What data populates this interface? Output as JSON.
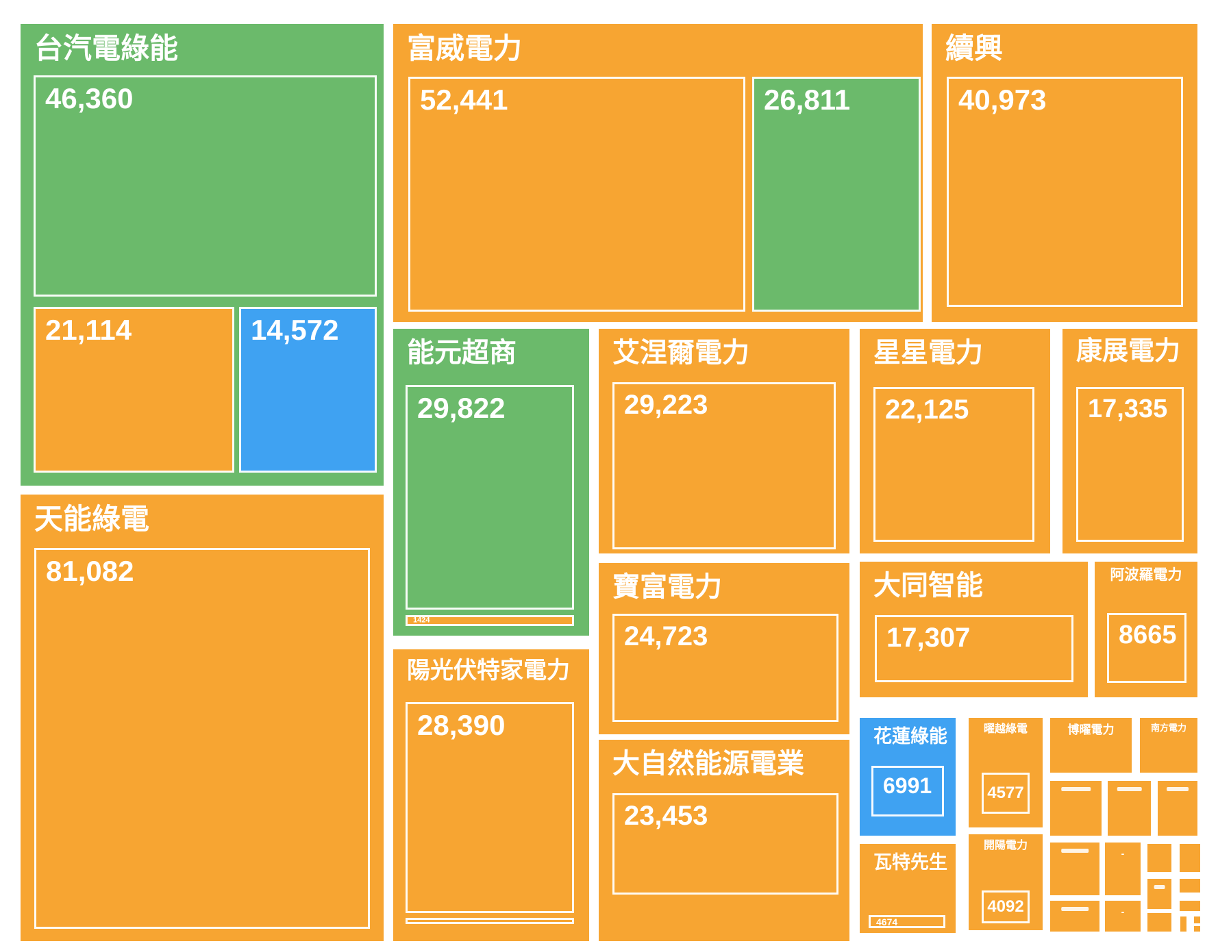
{
  "chart_data": {
    "type": "treemap",
    "legend": null,
    "palette": {
      "orange": "#F7A532",
      "green": "#6BBA6B",
      "blue": "#3FA2F2",
      "background": "#FFFFFF",
      "text": "#FFFFFF"
    },
    "groups": {
      "taiqidian": {
        "label": "台汽電綠能",
        "color": "green",
        "cells": {
          "v46360": {
            "value": 46360,
            "display": "46,360",
            "color": "green"
          },
          "v21114": {
            "value": 21114,
            "display": "21,114",
            "color": "orange"
          },
          "v14572": {
            "value": 14572,
            "display": "14,572",
            "color": "blue"
          }
        }
      },
      "fuwei": {
        "label": "富威電力",
        "color": "orange",
        "cells": {
          "v52441": {
            "value": 52441,
            "display": "52,441",
            "color": "orange"
          },
          "v26811": {
            "value": 26811,
            "display": "26,811",
            "color": "green"
          }
        }
      },
      "xuxing": {
        "label": "續興",
        "color": "orange",
        "cells": {
          "v40973": {
            "value": 40973,
            "display": "40,973",
            "color": "orange"
          }
        }
      },
      "nengyuan": {
        "label": "能元超商",
        "color": "green",
        "cells": {
          "v29822": {
            "value": 29822,
            "display": "29,822",
            "color": "green"
          },
          "v1424": {
            "value": 1424,
            "display": "1424",
            "color": "orange"
          }
        }
      },
      "yangguang": {
        "label": "陽光伏特家電力",
        "color": "orange",
        "cells": {
          "v28390": {
            "value": 28390,
            "display": "28,390",
            "color": "orange"
          },
          "sliver": {
            "display": "",
            "color": "orange"
          }
        }
      },
      "ainieer": {
        "label": "艾涅爾電力",
        "color": "orange",
        "cells": {
          "v29223": {
            "value": 29223,
            "display": "29,223",
            "color": "orange"
          }
        }
      },
      "xingxing": {
        "label": "星星電力",
        "color": "orange",
        "cells": {
          "v22125": {
            "value": 22125,
            "display": "22,125",
            "color": "orange"
          }
        }
      },
      "kangzhan": {
        "label": "康展電力",
        "color": "orange",
        "cells": {
          "v17335": {
            "value": 17335,
            "display": "17,335",
            "color": "orange"
          }
        }
      },
      "tianneng": {
        "label": "天能綠電",
        "color": "orange",
        "cells": {
          "v81082": {
            "value": 81082,
            "display": "81,082",
            "color": "orange"
          }
        }
      },
      "baofu": {
        "label": "寶富電力",
        "color": "orange",
        "cells": {
          "v24723": {
            "value": 24723,
            "display": "24,723",
            "color": "orange"
          }
        }
      },
      "daziran": {
        "label": "大自然能源電業",
        "color": "orange",
        "cells": {
          "v23453": {
            "value": 23453,
            "display": "23,453",
            "color": "orange"
          }
        }
      },
      "datong": {
        "label": "大同智能",
        "color": "orange",
        "cells": {
          "v17307": {
            "value": 17307,
            "display": "17,307",
            "color": "orange"
          }
        }
      },
      "apollo": {
        "label": "阿波羅電力",
        "color": "orange",
        "cells": {
          "v8665": {
            "value": 8665,
            "display": "8665",
            "color": "orange"
          }
        }
      },
      "hualien": {
        "label": "花蓮綠能",
        "color": "blue",
        "cells": {
          "v6991": {
            "value": 6991,
            "display": "6991",
            "color": "blue"
          }
        }
      },
      "watt": {
        "label": "瓦特先生",
        "color": "orange",
        "cells": {
          "v4674": {
            "value": 4674,
            "display": "4674",
            "color": "orange"
          }
        }
      },
      "yaoyue": {
        "label": "曜越綠電",
        "color": "orange",
        "cells": {
          "v4577": {
            "value": 4577,
            "display": "4577",
            "color": "orange"
          }
        }
      },
      "kaiyang": {
        "label": "開陽電力",
        "color": "orange",
        "cells": {
          "v4092": {
            "value": 4092,
            "display": "4092",
            "color": "orange"
          }
        }
      },
      "boyao": {
        "label": "博曜電力",
        "color": "orange"
      },
      "nanfang": {
        "label": "南方電力",
        "color": "orange"
      },
      "t1": {
        "label": "",
        "color": "orange"
      },
      "t2": {
        "label": "",
        "color": "orange"
      },
      "t3": {
        "label": "",
        "color": "orange"
      },
      "t4": {
        "label": "",
        "color": "orange"
      },
      "t5": {
        "label": "-",
        "color": "orange"
      },
      "t6": {
        "label": "",
        "color": "orange"
      },
      "t7": {
        "label": "",
        "color": "orange"
      },
      "t8": {
        "label": "",
        "color": "orange"
      },
      "t9": {
        "label": "",
        "color": "orange"
      },
      "t10": {
        "label": "",
        "color": "orange"
      },
      "t11": {
        "label": "",
        "color": "orange"
      },
      "t12": {
        "label": "-",
        "color": "orange"
      },
      "t13": {
        "label": "",
        "color": "orange"
      },
      "t14": {
        "label": "",
        "color": "orange"
      },
      "t15": {
        "label": "",
        "color": "orange"
      },
      "t16": {
        "label": "",
        "color": "orange"
      }
    }
  }
}
